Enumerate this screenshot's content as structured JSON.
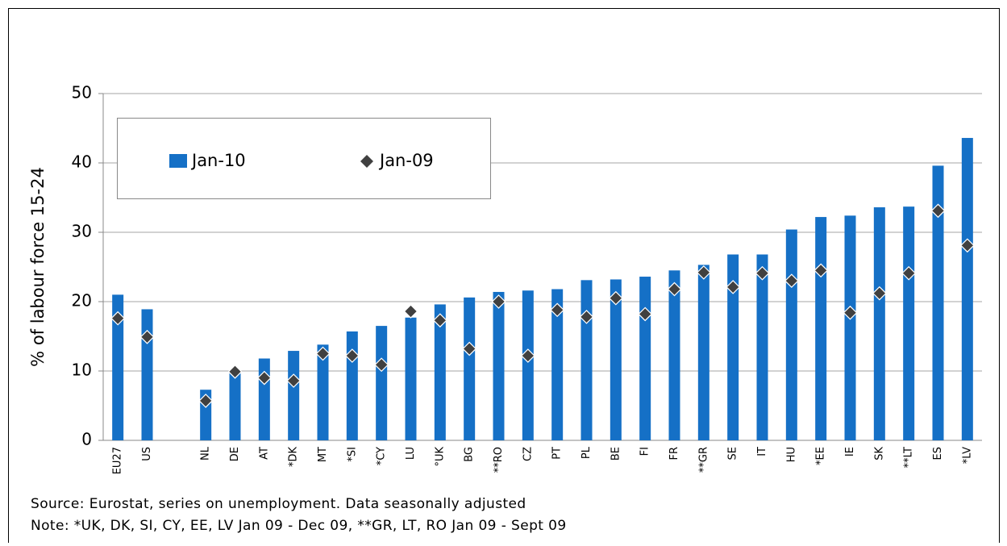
{
  "chart_data": {
    "type": "bar",
    "y_label": "% of labour force 15-24",
    "categories": [
      "EU27",
      "US",
      null,
      "NL",
      "DE",
      "AT",
      "*DK",
      "MT",
      "*SI",
      "*CY",
      "LU",
      "°UK",
      "BG",
      "**RO",
      "CZ",
      "PT",
      "PL",
      "BE",
      "FI",
      "FR",
      "**GR",
      "SE",
      "IT",
      "HU",
      "*EE",
      "IE",
      "SK",
      "**LT",
      "ES",
      "*LV"
    ],
    "series": [
      {
        "name": "Jan-10",
        "color": "#1570c6",
        "mark": "bar",
        "values": [
          21.0,
          18.9,
          null,
          7.3,
          10.0,
          11.8,
          12.9,
          13.8,
          15.7,
          16.5,
          17.7,
          19.6,
          20.6,
          21.4,
          21.6,
          21.8,
          23.1,
          23.2,
          23.6,
          24.5,
          25.3,
          26.8,
          26.8,
          30.4,
          32.2,
          32.4,
          33.6,
          33.7,
          39.6,
          43.6
        ]
      },
      {
        "name": "Jan-09",
        "color": "#404040",
        "mark": "diamond",
        "values": [
          17.6,
          14.9,
          null,
          5.7,
          9.9,
          9.0,
          8.6,
          12.5,
          12.2,
          10.9,
          18.6,
          17.3,
          13.2,
          20.0,
          12.2,
          18.8,
          17.8,
          20.5,
          18.2,
          21.8,
          24.2,
          22.1,
          24.1,
          23.0,
          24.5,
          18.4,
          21.2,
          24.1,
          33.1,
          28.1
        ]
      }
    ],
    "ylim": [
      0,
      50
    ],
    "yticks": [
      0,
      10,
      20,
      30,
      40,
      50
    ],
    "grid": true,
    "notes": [
      "Source: Eurostat, series on unemployment. Data seasonally adjusted",
      "Note: *UK, DK, SI, CY, EE, LV Jan 09 - Dec 09, **GR, LT, RO Jan 09 - Sept 09"
    ]
  }
}
